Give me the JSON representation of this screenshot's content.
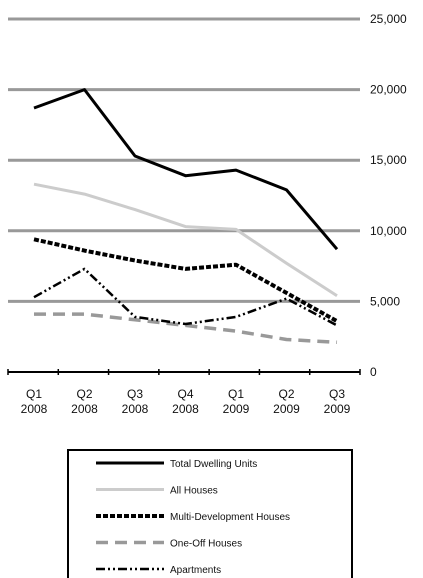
{
  "chart_data": {
    "type": "line",
    "categories": [
      [
        "Q1",
        "2008"
      ],
      [
        "Q2",
        "2008"
      ],
      [
        "Q3",
        "2008"
      ],
      [
        "Q4",
        "2008"
      ],
      [
        "Q1",
        "2009"
      ],
      [
        "Q2",
        "2009"
      ],
      [
        "Q3",
        "2009"
      ]
    ],
    "y_axis": {
      "position": "right",
      "min": 0,
      "max": 25000,
      "ticks": [
        0,
        5000,
        10000,
        15000,
        20000,
        25000
      ],
      "tick_labels": [
        "0",
        "5,000",
        "10,000",
        "15,000",
        "20,000",
        "25,000"
      ]
    },
    "grid": true,
    "legend_position": "bottom",
    "series": [
      {
        "name": "Total Dwelling  Units",
        "style": "solid",
        "color": "#000000",
        "values": [
          18700,
          20000,
          15300,
          13900,
          14300,
          12900,
          8700
        ]
      },
      {
        "name": "All Houses",
        "style": "solid",
        "color": "#cccccc",
        "values": [
          13300,
          12600,
          11500,
          10300,
          10100,
          7700,
          5400
        ]
      },
      {
        "name": "Multi-Development  Houses",
        "style": "short-dash",
        "color": "#000000",
        "values": [
          9400,
          8600,
          7900,
          7300,
          7600,
          5600,
          3600
        ]
      },
      {
        "name": "One-Off Houses",
        "style": "long-dash",
        "color": "#999999",
        "values": [
          4100,
          4100,
          3700,
          3300,
          2900,
          2300,
          2100
        ]
      },
      {
        "name": "Apartments",
        "style": "dash-dot-dot",
        "color": "#000000",
        "values": [
          5300,
          7300,
          3900,
          3400,
          3900,
          5200,
          3300
        ]
      }
    ]
  }
}
